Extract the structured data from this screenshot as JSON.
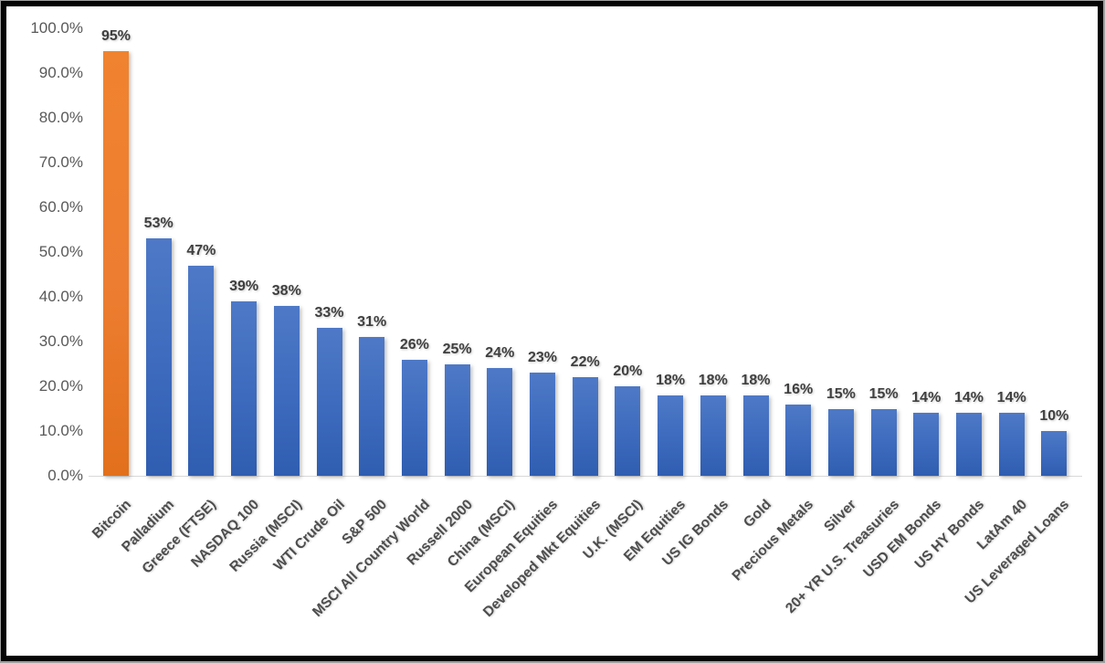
{
  "chart_data": {
    "type": "bar",
    "title": "",
    "xlabel": "",
    "ylabel": "",
    "categories": [
      "Bitcoin",
      "Palladium",
      "Greece (FTSE)",
      "NASDAQ 100",
      "Russia (MSCI)",
      "WTI Crude Oil",
      "S&P 500",
      "MSCI All Country World",
      "Russell 2000",
      "China (MSCI)",
      "European Equities",
      "Developed Mkt Equities",
      "U.K. (MSCI)",
      "EM Equities",
      "US IG Bonds",
      "Gold",
      "Precious Metals",
      "Silver",
      "20+ YR U.S. Treasuries",
      "USD EM Bonds",
      "US HY Bonds",
      "LatAm 40",
      "US Leveraged Loans"
    ],
    "values": [
      95,
      53,
      47,
      39,
      38,
      33,
      31,
      26,
      25,
      24,
      23,
      22,
      20,
      18,
      18,
      18,
      16,
      15,
      15,
      14,
      14,
      14,
      10
    ],
    "value_labels": [
      "95%",
      "53%",
      "47%",
      "39%",
      "38%",
      "33%",
      "31%",
      "26%",
      "25%",
      "24%",
      "23%",
      "22%",
      "20%",
      "18%",
      "18%",
      "18%",
      "16%",
      "15%",
      "15%",
      "14%",
      "14%",
      "14%",
      "10%"
    ],
    "ylim": [
      0,
      100
    ],
    "ytick_labels": [
      "0.0%",
      "10.0%",
      "20.0%",
      "30.0%",
      "40.0%",
      "50.0%",
      "60.0%",
      "70.0%",
      "80.0%",
      "90.0%",
      "100.0%"
    ],
    "grid": false,
    "legend": "none",
    "highlight_index": 0,
    "colors": {
      "bar_blue_top": "#4E79C7",
      "bar_blue_bottom": "#2F5DB0",
      "bar_highlight": "#ED7D31",
      "axis_line": "#D9D9D9",
      "tick_label": "#595959",
      "value_label": "#3F3F3F",
      "category_label": "#4D4D4D",
      "frame_border": "#050505"
    }
  }
}
